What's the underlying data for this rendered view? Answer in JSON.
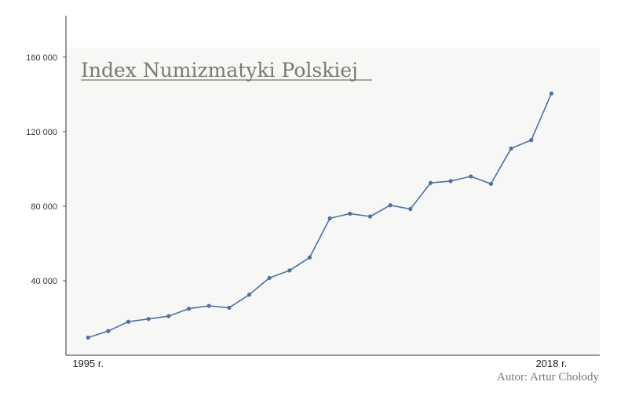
{
  "chart_data": {
    "type": "line",
    "title": "Index Numizmatyki Polskiej",
    "author": "Autor: Artur Chołody",
    "xlabel": "",
    "ylabel": "",
    "x_tick_labels": [
      "1995 r.",
      "2018 r."
    ],
    "y_ticks": [
      40000,
      80000,
      120000,
      160000
    ],
    "y_tick_labels": [
      "40 000",
      "80 000",
      "120 000",
      "160 000"
    ],
    "ylim": [
      0,
      165000
    ],
    "xlim": [
      1993.9,
      2020.4
    ],
    "grid": false,
    "line_color": "#4a72a8",
    "plot_background": "#f7f7f5",
    "series": [
      {
        "x": [
          1995,
          1996,
          1997,
          1998,
          1999,
          2000,
          2001,
          2002,
          2003,
          2004,
          2005,
          2006,
          2007,
          2008,
          2009,
          2010,
          2011,
          2012,
          2013,
          2014,
          2015,
          2016,
          2017,
          2018
        ],
        "values": [
          9500,
          13000,
          18000,
          19500,
          21000,
          25000,
          26500,
          25500,
          32500,
          41500,
          45500,
          52500,
          73500,
          76000,
          74500,
          80500,
          78500,
          92500,
          93500,
          96000,
          92000,
          111000,
          115500,
          140500
        ]
      }
    ]
  }
}
